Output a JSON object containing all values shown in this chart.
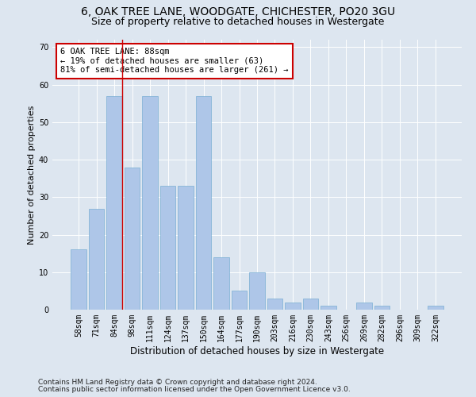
{
  "title1": "6, OAK TREE LANE, WOODGATE, CHICHESTER, PO20 3GU",
  "title2": "Size of property relative to detached houses in Westergate",
  "xlabel": "Distribution of detached houses by size in Westergate",
  "ylabel": "Number of detached properties",
  "categories": [
    "58sqm",
    "71sqm",
    "84sqm",
    "98sqm",
    "111sqm",
    "124sqm",
    "137sqm",
    "150sqm",
    "164sqm",
    "177sqm",
    "190sqm",
    "203sqm",
    "216sqm",
    "230sqm",
    "243sqm",
    "256sqm",
    "269sqm",
    "282sqm",
    "296sqm",
    "309sqm",
    "322sqm"
  ],
  "values": [
    16,
    27,
    57,
    38,
    57,
    33,
    33,
    57,
    14,
    5,
    10,
    3,
    2,
    3,
    1,
    0,
    2,
    1,
    0,
    0,
    1
  ],
  "bar_color": "#aec6e8",
  "bar_edge_color": "#7aafd4",
  "red_line_x": 2,
  "annotation_text": "6 OAK TREE LANE: 88sqm\n← 19% of detached houses are smaller (63)\n81% of semi-detached houses are larger (261) →",
  "annotation_box_color": "#ffffff",
  "annotation_box_edge": "#cc0000",
  "ylim": [
    0,
    72
  ],
  "yticks": [
    0,
    10,
    20,
    30,
    40,
    50,
    60,
    70
  ],
  "background_color": "#dde6f0",
  "plot_bg_color": "#dde6f0",
  "footer1": "Contains HM Land Registry data © Crown copyright and database right 2024.",
  "footer2": "Contains public sector information licensed under the Open Government Licence v3.0.",
  "title1_fontsize": 10,
  "title2_fontsize": 9,
  "xlabel_fontsize": 8.5,
  "ylabel_fontsize": 8,
  "tick_fontsize": 7,
  "footer_fontsize": 6.5,
  "annot_fontsize": 7.5
}
